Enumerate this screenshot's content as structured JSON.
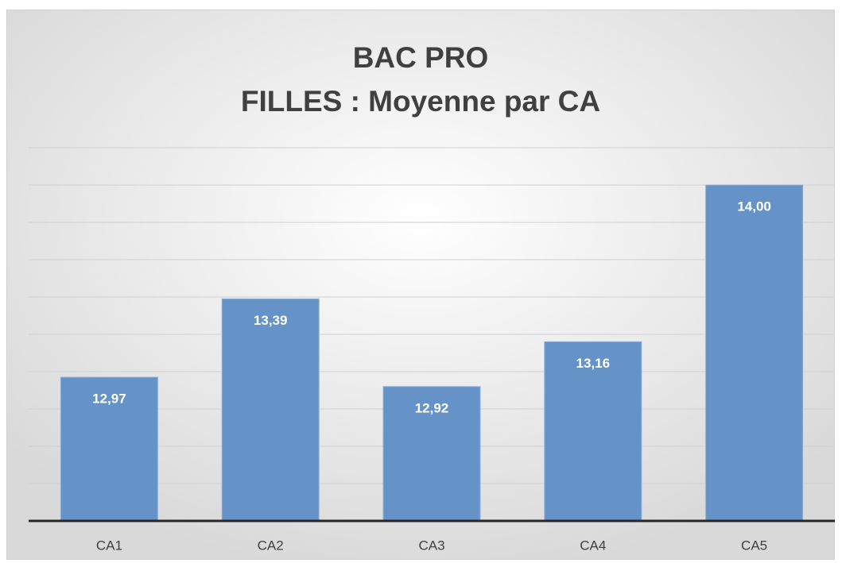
{
  "chart_data": {
    "type": "bar",
    "title": [
      "BAC PRO",
      "FILLES : Moyenne par CA"
    ],
    "categories": [
      "CA1",
      "CA2",
      "CA3",
      "CA4",
      "CA5"
    ],
    "values": [
      12.97,
      13.39,
      12.92,
      13.16,
      14.0
    ],
    "value_labels": [
      "12,97",
      "13,39",
      "12,92",
      "13,16",
      "14,00"
    ],
    "color": "#6593c8",
    "ylim": [
      12.2,
      14.2
    ],
    "yticks": [
      12.2,
      12.4,
      12.6,
      12.8,
      13.0,
      13.2,
      13.4,
      13.6,
      13.8,
      14.0,
      14.2
    ],
    "grid": true
  }
}
